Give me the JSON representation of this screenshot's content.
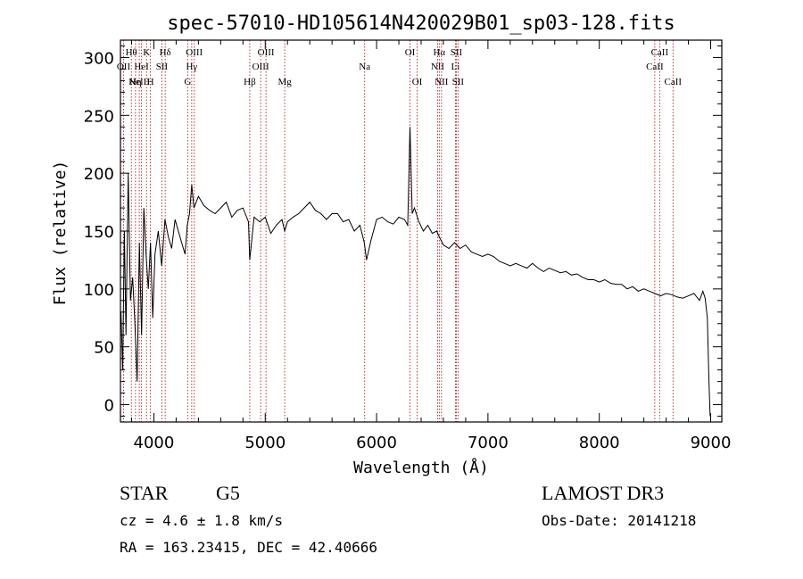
{
  "chart_data": {
    "type": "line",
    "title": "spec-57010-HD105614N420029B01_sp03-128.fits",
    "xlabel": "Wavelength (Å)",
    "ylabel": "Flux (relative)",
    "xlim": [
      3700,
      9100
    ],
    "ylim": [
      -15,
      315
    ],
    "xticks": [
      4000,
      5000,
      6000,
      7000,
      8000,
      9000
    ],
    "yticks": [
      0,
      50,
      100,
      150,
      200,
      250,
      300
    ],
    "grid": false,
    "colors": {
      "spectrum": "#000000",
      "lines": "#b22222",
      "axes": "#000000"
    },
    "series": [
      {
        "name": "flux",
        "x": [
          3705,
          3720,
          3735,
          3750,
          3770,
          3790,
          3810,
          3830,
          3850,
          3870,
          3890,
          3910,
          3930,
          3950,
          3970,
          3990,
          4010,
          4040,
          4070,
          4100,
          4130,
          4160,
          4190,
          4220,
          4250,
          4280,
          4300,
          4320,
          4340,
          4360,
          4380,
          4400,
          4450,
          4500,
          4550,
          4600,
          4650,
          4700,
          4750,
          4800,
          4850,
          4861,
          4900,
          4950,
          5000,
          5050,
          5100,
          5150,
          5175,
          5200,
          5250,
          5300,
          5350,
          5400,
          5450,
          5500,
          5550,
          5600,
          5650,
          5700,
          5750,
          5800,
          5850,
          5890,
          5910,
          5950,
          6000,
          6050,
          6100,
          6150,
          6200,
          6250,
          6280,
          6300,
          6320,
          6340,
          6380,
          6420,
          6460,
          6500,
          6540,
          6563,
          6600,
          6650,
          6700,
          6750,
          6800,
          6850,
          6900,
          6950,
          7000,
          7050,
          7100,
          7150,
          7200,
          7250,
          7300,
          7350,
          7400,
          7450,
          7500,
          7550,
          7600,
          7650,
          7700,
          7750,
          7800,
          7850,
          7900,
          7950,
          8000,
          8050,
          8100,
          8150,
          8200,
          8250,
          8300,
          8350,
          8400,
          8450,
          8500,
          8550,
          8600,
          8650,
          8700,
          8750,
          8800,
          8850,
          8900,
          8930,
          8950,
          8970,
          8985,
          8995
        ],
        "values": [
          80,
          30,
          150,
          60,
          200,
          90,
          110,
          70,
          20,
          140,
          60,
          170,
          130,
          100,
          140,
          75,
          130,
          150,
          120,
          160,
          145,
          135,
          160,
          150,
          140,
          130,
          155,
          165,
          190,
          170,
          175,
          180,
          172,
          168,
          165,
          170,
          175,
          162,
          168,
          170,
          158,
          125,
          162,
          158,
          162,
          148,
          155,
          160,
          150,
          158,
          162,
          165,
          170,
          175,
          168,
          165,
          160,
          165,
          165,
          158,
          160,
          150,
          155,
          140,
          125,
          142,
          160,
          162,
          158,
          156,
          162,
          160,
          155,
          240,
          165,
          170,
          158,
          150,
          155,
          148,
          150,
          145,
          138,
          135,
          140,
          135,
          138,
          132,
          130,
          128,
          130,
          128,
          124,
          122,
          120,
          122,
          120,
          118,
          122,
          118,
          115,
          118,
          116,
          114,
          115,
          112,
          113,
          110,
          108,
          108,
          106,
          108,
          105,
          104,
          104,
          100,
          102,
          98,
          100,
          98,
          96,
          94,
          96,
          95,
          93,
          92,
          94,
          96,
          90,
          98,
          92,
          75,
          20,
          -10
        ]
      }
    ],
    "lines": [
      {
        "x": 3728,
        "label": "OII",
        "row": 2
      },
      {
        "x": 3798,
        "label": "Hθ",
        "row": 1
      },
      {
        "x": 3835,
        "label": "Hη",
        "row": 3
      },
      {
        "x": 3869,
        "label": "NeIII",
        "row": 3
      },
      {
        "x": 3889,
        "label": "HeI",
        "row": 2
      },
      {
        "x": 3934,
        "label": "K",
        "row": 1
      },
      {
        "x": 3969,
        "label": "H",
        "row": 3
      },
      {
        "x": 4072,
        "label": "SII",
        "row": 2
      },
      {
        "x": 4102,
        "label": "Hδ",
        "row": 1
      },
      {
        "x": 4304,
        "label": "G",
        "row": 3
      },
      {
        "x": 4340,
        "label": "Hγ",
        "row": 2
      },
      {
        "x": 4363,
        "label": "OIII",
        "row": 1
      },
      {
        "x": 4861,
        "label": "Hβ",
        "row": 3
      },
      {
        "x": 4959,
        "label": "OIII",
        "row": 2
      },
      {
        "x": 5007,
        "label": "OIII",
        "row": 1
      },
      {
        "x": 5175,
        "label": "Mg",
        "row": 3
      },
      {
        "x": 5893,
        "label": "Na",
        "row": 2
      },
      {
        "x": 6300,
        "label": "OI",
        "row": 1
      },
      {
        "x": 6364,
        "label": "OI",
        "row": 3
      },
      {
        "x": 6548,
        "label": "NII",
        "row": 2
      },
      {
        "x": 6563,
        "label": "Hα",
        "row": 1
      },
      {
        "x": 6583,
        "label": "NII",
        "row": 3
      },
      {
        "x": 6708,
        "label": "Li",
        "row": 2
      },
      {
        "x": 6716,
        "label": "SII",
        "row": 1
      },
      {
        "x": 6731,
        "label": "SII",
        "row": 3
      },
      {
        "x": 8498,
        "label": "CaII",
        "row": 2
      },
      {
        "x": 8542,
        "label": "CaII",
        "row": 1
      },
      {
        "x": 8662,
        "label": "CaII",
        "row": 3
      }
    ]
  },
  "info": {
    "object_class": "STAR",
    "subclass": "G5",
    "survey": "LAMOST DR3",
    "redshift": "cz = 4.6 ± 1.8 km/s",
    "obs_date": "Obs-Date: 20141218",
    "coords": "RA = 163.23415, DEC =  42.40666"
  }
}
